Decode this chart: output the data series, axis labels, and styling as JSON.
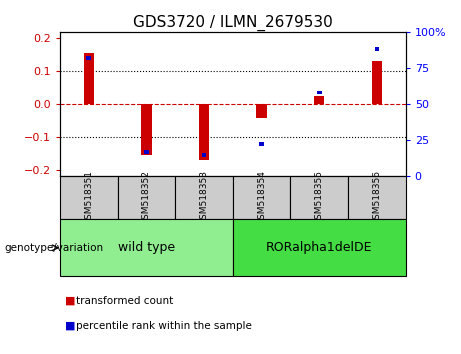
{
  "title": "GDS3720 / ILMN_2679530",
  "samples": [
    "GSM518351",
    "GSM518352",
    "GSM518353",
    "GSM518354",
    "GSM518355",
    "GSM518356"
  ],
  "red_values": [
    0.155,
    -0.155,
    -0.17,
    -0.042,
    0.025,
    0.13
  ],
  "blue_values_pct": [
    82,
    17,
    15,
    22,
    58,
    88
  ],
  "ylim_left": [
    -0.22,
    0.22
  ],
  "ylim_right": [
    0,
    100
  ],
  "yticks_left": [
    -0.2,
    -0.1,
    0,
    0.1,
    0.2
  ],
  "yticks_right": [
    0,
    25,
    50,
    75,
    100
  ],
  "groups": [
    {
      "label": "wild type",
      "indices": [
        0,
        1,
        2
      ],
      "color": "#90EE90"
    },
    {
      "label": "RORalpha1delDE",
      "indices": [
        3,
        4,
        5
      ],
      "color": "#44DD44"
    }
  ],
  "legend_items": [
    {
      "label": "transformed count",
      "color": "#CC0000"
    },
    {
      "label": "percentile rank within the sample",
      "color": "#0000CC"
    }
  ],
  "red_bar_width": 0.18,
  "blue_bar_width": 0.08,
  "red_color": "#CC0000",
  "blue_color": "#0000CC",
  "zero_line_color": "#CC0000",
  "grid_color": "black",
  "bg_plot": "white",
  "bg_samples": "#CCCCCC",
  "group_label": "genotype/variation",
  "title_fontsize": 11,
  "tick_fontsize": 8,
  "label_fontsize": 8,
  "sample_fontsize": 6.5,
  "group_fontsize": 9,
  "legend_fontsize": 7.5
}
